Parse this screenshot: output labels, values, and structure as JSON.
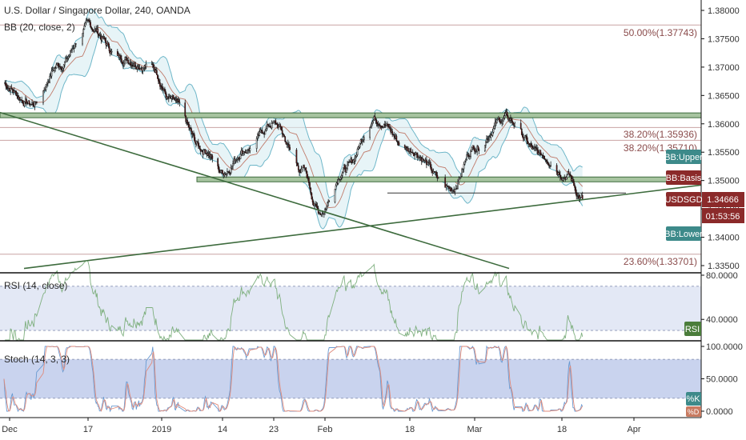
{
  "main_title": "U.S. Dollar / Singapore Dollar, 240, OANDA",
  "bb_title": "BB (20, close, 2)",
  "rsi_title": "RSI (14, close)",
  "stoch_title": "Stoch (14, 3, 3)",
  "price_ticks": [
    "1.38000",
    "1.37500",
    "1.37000",
    "1.36500",
    "1.36000",
    "1.35500",
    "1.35000",
    "1.34500",
    "1.34000",
    "1.33500"
  ],
  "rsi_ticks": [
    "80.0000",
    "40.0000"
  ],
  "stoch_ticks": [
    "100.0000",
    "50.0000",
    "0.0000"
  ],
  "time_labels": [
    "Dec",
    "17",
    "2019",
    "14",
    "23",
    "Feb",
    "18",
    "Mar",
    "18",
    "Apr"
  ],
  "fib_labels": [
    "50.00%(1.37743)",
    "38.20%(1.35936)",
    "38.20%(1.35710)",
    "23.60%(1.33701)"
  ],
  "tags": {
    "bb_upper": "BB:Upper",
    "bb_basis": "BB:Basis",
    "symbol": "USDSGD",
    "last_price": "1.34666",
    "countdown": "01:53:56",
    "bb_lower": "BB:Lower",
    "rsi": "RSI",
    "stoch_k": "%K",
    "stoch_d": "%D"
  },
  "colors": {
    "candle_up": "#f4f4f4",
    "candle_down": "#6b1010",
    "candle_wick": "#1a1a1a",
    "bb_band": "#6fb7c9",
    "bb_fill": "#d7ecf1",
    "bb_basis": "#c07b6b",
    "support_line": "#3d6b3d",
    "fib_line": "#c9a3a3",
    "rsi_line": "#7fb07f",
    "stoch_k": "#6a9ad1",
    "stoch_d": "#e08a7a",
    "osc_bg": "#e3e8f5",
    "tag_teal": "#3d8a8a",
    "tag_maroon": "#8b2a2a",
    "tag_green": "#4b7d3b",
    "tag_dark": "#1a1a1a"
  },
  "chart_data": {
    "type": "candlestick",
    "title": "U.S. Dollar / Singapore Dollar, 240, OANDA",
    "symbol": "USDSGD",
    "last_price": 1.34666,
    "price_range": [
      1.333,
      1.381
    ],
    "price_anchor_path": [
      {
        "date": "2018-12-01",
        "price": 1.3675
      },
      {
        "date": "2018-12-07",
        "price": 1.3635
      },
      {
        "date": "2018-12-12",
        "price": 1.3705
      },
      {
        "date": "2018-12-17",
        "price": 1.3772
      },
      {
        "date": "2018-12-24",
        "price": 1.3715
      },
      {
        "date": "2018-12-30",
        "price": 1.37
      },
      {
        "date": "2019-01-03",
        "price": 1.364
      },
      {
        "date": "2019-01-10",
        "price": 1.3555
      },
      {
        "date": "2019-01-14",
        "price": 1.3515
      },
      {
        "date": "2019-01-18",
        "price": 1.3555
      },
      {
        "date": "2019-01-23",
        "price": 1.36
      },
      {
        "date": "2019-01-28",
        "price": 1.352
      },
      {
        "date": "2019-01-31",
        "price": 1.3445
      },
      {
        "date": "2019-02-05",
        "price": 1.352
      },
      {
        "date": "2019-02-11",
        "price": 1.361
      },
      {
        "date": "2019-02-18",
        "price": 1.3555
      },
      {
        "date": "2019-02-25",
        "price": 1.3485
      },
      {
        "date": "2019-03-01",
        "price": 1.356
      },
      {
        "date": "2019-03-07",
        "price": 1.361
      },
      {
        "date": "2019-03-14",
        "price": 1.3545
      },
      {
        "date": "2019-03-19",
        "price": 1.351
      },
      {
        "date": "2019-03-22",
        "price": 1.3467
      }
    ],
    "fibonacci_levels": [
      {
        "label": "50.00%",
        "price": 1.37743
      },
      {
        "label": "38.20%",
        "price": 1.35936
      },
      {
        "label": "38.20%",
        "price": 1.3571
      },
      {
        "label": "23.60%",
        "price": 1.33701
      }
    ],
    "horizontal_zones": [
      1.3615,
      1.3502
    ],
    "bollinger_bands": {
      "length": 20,
      "source": "close",
      "mult": 2
    },
    "rsi": {
      "length": 14,
      "source": "close",
      "band_upper": 70,
      "band_lower": 30
    },
    "stochastic": {
      "k": 14,
      "d": 3,
      "smooth": 3,
      "band_upper": 80,
      "band_lower": 20
    },
    "time_axis": [
      "Dec",
      "17",
      "2019",
      "14",
      "23",
      "Feb",
      "18",
      "Mar",
      "18",
      "Apr"
    ]
  }
}
